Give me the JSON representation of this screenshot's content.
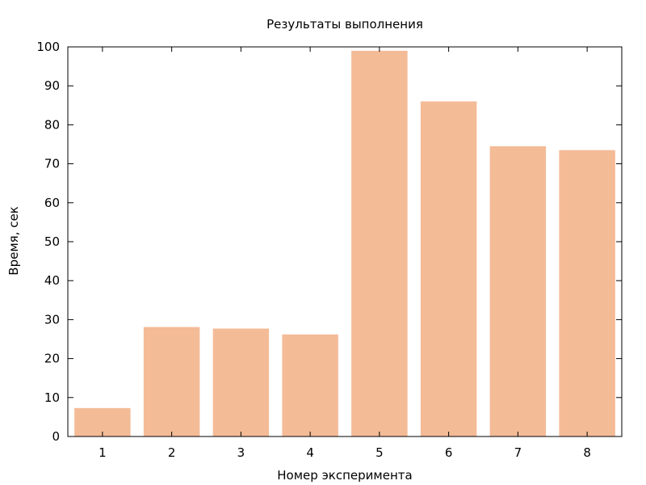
{
  "chart_data": {
    "type": "bar",
    "title": "Результаты выполнения",
    "xlabel": "Номер эксперимента",
    "ylabel": "Время, сек",
    "categories": [
      "1",
      "2",
      "3",
      "4",
      "5",
      "6",
      "7",
      "8"
    ],
    "values": [
      7.3,
      28.1,
      27.7,
      26.2,
      99.0,
      86.0,
      74.5,
      73.5
    ],
    "ylim": [
      0,
      100
    ],
    "yticks": [
      0,
      10,
      20,
      30,
      40,
      50,
      60,
      70,
      80,
      90,
      100
    ],
    "grid": false,
    "legend": "none",
    "bar_color": "#f4bb97"
  }
}
